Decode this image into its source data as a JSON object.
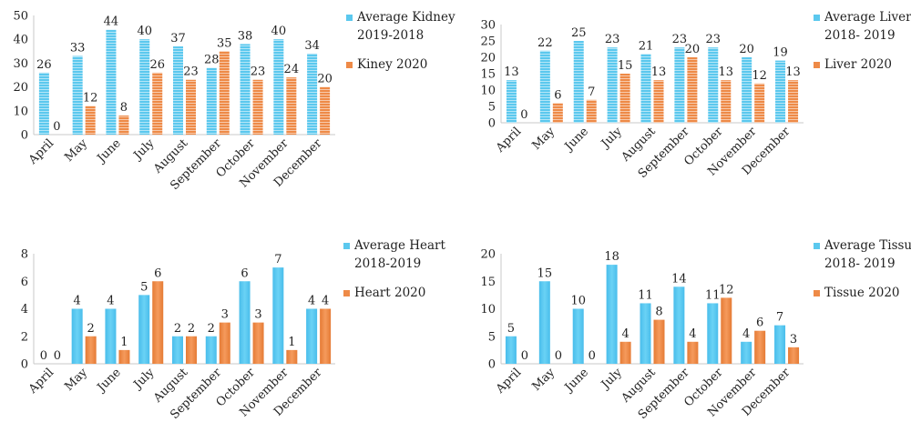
{
  "colors": {
    "average": "#5BC8EE",
    "current": "#EE8A47",
    "axis": "#C8C8C8"
  },
  "chart_data": [
    {
      "type": "bar",
      "categories": [
        "April",
        "May",
        "June",
        "July",
        "August",
        "September",
        "October",
        "November",
        "December"
      ],
      "ylim": [
        0,
        50
      ],
      "yticks": [
        "0",
        "10",
        "20",
        "30",
        "40",
        "50"
      ],
      "striped": true,
      "series": [
        {
          "name": "Average Kidney 2019-2018",
          "legend_lines": [
            "Average Kidney",
            "2019-2018"
          ],
          "values": [
            26,
            33,
            44,
            40,
            37,
            28,
            38,
            40,
            34
          ]
        },
        {
          "name": "Kiney 2020",
          "legend_lines": [
            "Kiney 2020"
          ],
          "values": [
            0,
            12,
            8,
            26,
            23,
            35,
            23,
            24,
            20
          ]
        }
      ]
    },
    {
      "type": "bar",
      "categories": [
        "April",
        "May",
        "June",
        "July",
        "August",
        "September",
        "October",
        "November",
        "December"
      ],
      "ylim": [
        0,
        30
      ],
      "yticks": [
        "0",
        "5",
        "10",
        "15",
        "20",
        "25",
        "30"
      ],
      "striped": true,
      "series": [
        {
          "name": "Average Liver 2018- 2019",
          "legend_lines": [
            "Average Liver",
            "2018- 2019"
          ],
          "values": [
            13,
            22,
            25,
            23,
            21,
            23,
            23,
            20,
            19
          ]
        },
        {
          "name": "Liver 2020",
          "legend_lines": [
            "Liver 2020"
          ],
          "values": [
            0,
            6,
            7,
            15,
            13,
            20,
            13,
            12,
            13
          ]
        }
      ]
    },
    {
      "type": "bar",
      "categories": [
        "April",
        "May",
        "June",
        "July",
        "August",
        "September",
        "October",
        "November",
        "December"
      ],
      "ylim": [
        0,
        8
      ],
      "yticks": [
        "0",
        "2",
        "4",
        "6",
        "8"
      ],
      "striped": false,
      "series": [
        {
          "name": "Average Heart 2018-2019",
          "legend_lines": [
            "Average Heart",
            "2018-2019"
          ],
          "values": [
            0,
            4,
            4,
            5,
            2,
            2,
            6,
            7,
            4
          ]
        },
        {
          "name": "Heart 2020",
          "legend_lines": [
            "Heart 2020"
          ],
          "values": [
            0,
            2,
            1,
            6,
            2,
            3,
            3,
            1,
            4
          ]
        }
      ]
    },
    {
      "type": "bar",
      "categories": [
        "April",
        "May",
        "June",
        "July",
        "August",
        "September",
        "October",
        "November",
        "December"
      ],
      "ylim": [
        0,
        20
      ],
      "yticks": [
        "0",
        "5",
        "10",
        "15",
        "20"
      ],
      "striped": false,
      "series": [
        {
          "name": "Average Tissue 2018- 2019",
          "legend_lines": [
            "Average Tissue",
            "2018- 2019"
          ],
          "values": [
            5,
            15,
            10,
            18,
            11,
            14,
            11,
            4,
            7
          ]
        },
        {
          "name": "Tissue 2020",
          "legend_lines": [
            "Tissue 2020"
          ],
          "values": [
            0,
            0,
            0,
            4,
            8,
            4,
            12,
            6,
            3
          ]
        }
      ]
    }
  ]
}
